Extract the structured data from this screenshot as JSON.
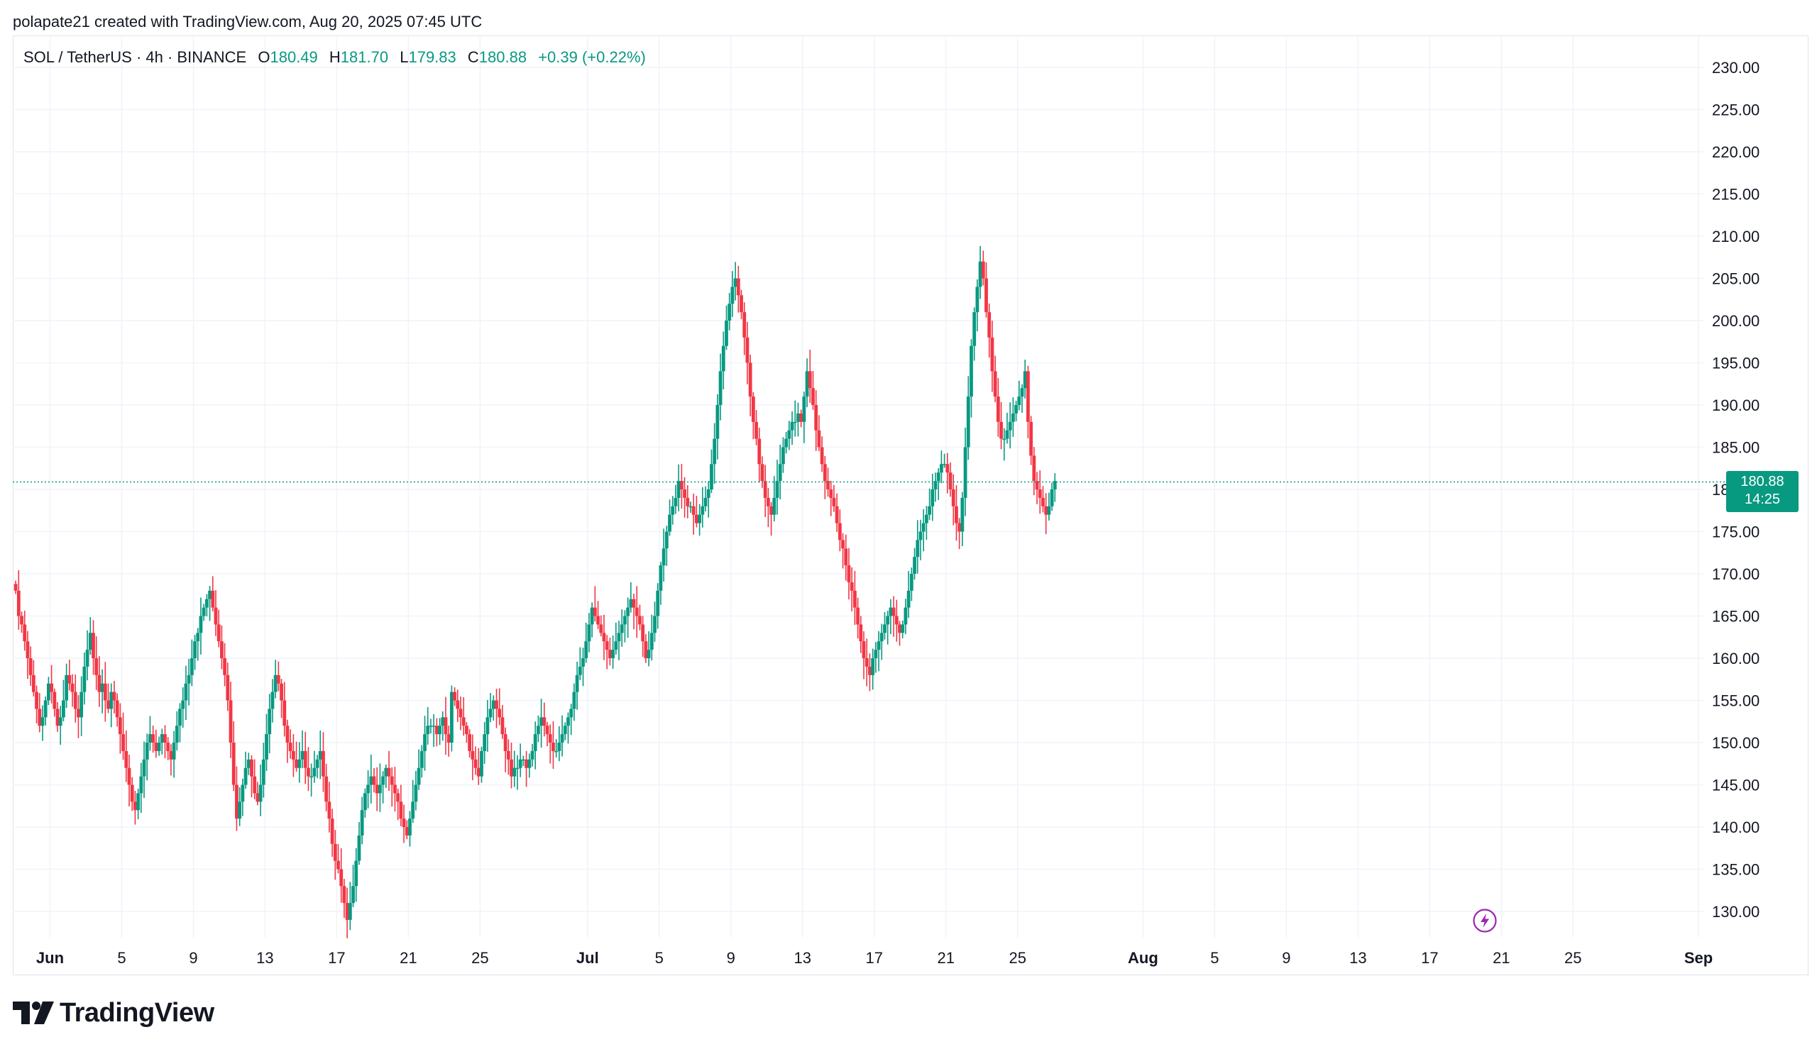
{
  "header": {
    "credit": "polapate21 created with TradingView.com, Aug 20, 2025 07:45 UTC"
  },
  "legend": {
    "symbol": "SOL / TetherUS · 4h · BINANCE",
    "open_label": "O",
    "open": "180.49",
    "high_label": "H",
    "high": "181.70",
    "low_label": "L",
    "low": "179.83",
    "close_label": "C",
    "close": "180.88",
    "change": "+0.39 (+0.22%)"
  },
  "price_tag": {
    "price": "180.88",
    "countdown": "14:25"
  },
  "logo": {
    "text": "TradingView"
  },
  "icons": {
    "flash": "lightning-icon",
    "logo": "tradingview-logo-icon"
  },
  "colors": {
    "up": "#089981",
    "down": "#f23645",
    "grid": "#f0f3fa",
    "axis_text": "#131722",
    "flash": "#9c27b0"
  },
  "chart_data": {
    "type": "candlestick",
    "interval": "4h",
    "ylim": [
      126,
      233
    ],
    "y_ticks": [
      "130.00",
      "135.00",
      "140.00",
      "145.00",
      "150.00",
      "155.00",
      "160.00",
      "165.00",
      "170.00",
      "175.00",
      "180.00",
      "185.00",
      "190.00",
      "195.00",
      "200.00",
      "205.00",
      "210.00",
      "215.00",
      "220.00",
      "225.00",
      "230.00"
    ],
    "x_range": [
      "2025-05-30",
      "2025-09-01"
    ],
    "x_ticks": [
      {
        "date": "2025-06-01",
        "label": "Jun",
        "bold": true
      },
      {
        "date": "2025-06-05",
        "label": "5"
      },
      {
        "date": "2025-06-09",
        "label": "9"
      },
      {
        "date": "2025-06-13",
        "label": "13"
      },
      {
        "date": "2025-06-17",
        "label": "17"
      },
      {
        "date": "2025-06-21",
        "label": "21"
      },
      {
        "date": "2025-06-25",
        "label": "25"
      },
      {
        "date": "2025-07-01",
        "label": "Jul",
        "bold": true
      },
      {
        "date": "2025-07-05",
        "label": "5"
      },
      {
        "date": "2025-07-09",
        "label": "9"
      },
      {
        "date": "2025-07-13",
        "label": "13"
      },
      {
        "date": "2025-07-17",
        "label": "17"
      },
      {
        "date": "2025-07-21",
        "label": "21"
      },
      {
        "date": "2025-07-25",
        "label": "25"
      },
      {
        "date": "2025-08-01",
        "label": "Aug",
        "bold": true
      },
      {
        "date": "2025-08-05",
        "label": "5"
      },
      {
        "date": "2025-08-09",
        "label": "9"
      },
      {
        "date": "2025-08-13",
        "label": "13"
      },
      {
        "date": "2025-08-17",
        "label": "17"
      },
      {
        "date": "2025-08-21",
        "label": "21"
      },
      {
        "date": "2025-08-25",
        "label": "25"
      },
      {
        "date": "2025-09-01",
        "label": "Sep",
        "bold": true
      }
    ],
    "start": "2025-05-30T00:00Z",
    "step_hours": 4,
    "closes": [
      168,
      165,
      164,
      162,
      160,
      158,
      156,
      154,
      152,
      153,
      155,
      157,
      156,
      154,
      152,
      153,
      155,
      158,
      157,
      156,
      154,
      153,
      156,
      159,
      161,
      163,
      160,
      158,
      156,
      157,
      155,
      154,
      156,
      155,
      153,
      151,
      149,
      147,
      145,
      143,
      142,
      144,
      146,
      148,
      150,
      151,
      150,
      149,
      150,
      151,
      150,
      149,
      148,
      150,
      152,
      154,
      155,
      157,
      158,
      160,
      162,
      163,
      165,
      166,
      167,
      168,
      166,
      164,
      162,
      160,
      158,
      155,
      150,
      145,
      141,
      143,
      145,
      147,
      148,
      146,
      144,
      143,
      145,
      148,
      151,
      154,
      156,
      158,
      157,
      155,
      152,
      150,
      149,
      148,
      147,
      148,
      149,
      147,
      146,
      146,
      147,
      148,
      149,
      146,
      143,
      141,
      138,
      136,
      135,
      133,
      131,
      129,
      131,
      133,
      136,
      139,
      142,
      144,
      145,
      146,
      145,
      144,
      145,
      146,
      147,
      146,
      145,
      144,
      143,
      141,
      140,
      139,
      141,
      143,
      145,
      147,
      149,
      151,
      152,
      152,
      152,
      151,
      152,
      153,
      151,
      150,
      156,
      155,
      154,
      153,
      152,
      151,
      149,
      148,
      147,
      146,
      149,
      151,
      153,
      154,
      155,
      154,
      153,
      151,
      149,
      148,
      146,
      147,
      147,
      148,
      148,
      147,
      148,
      149,
      151,
      152,
      153,
      152,
      151,
      150,
      149,
      149,
      150,
      151,
      152,
      153,
      154,
      156,
      158,
      159,
      160,
      162,
      164,
      166,
      165,
      164,
      163,
      162,
      161,
      160,
      161,
      162,
      163,
      164,
      165,
      166,
      167,
      166,
      165,
      164,
      162,
      160,
      161,
      163,
      165,
      168,
      171,
      173,
      175,
      177,
      178,
      179,
      181,
      180,
      179,
      178,
      178,
      177,
      176,
      177,
      178,
      179,
      180,
      183,
      186,
      190,
      194,
      197,
      200,
      202,
      204,
      205,
      203,
      201,
      198,
      195,
      191,
      188,
      186,
      183,
      181,
      179,
      178,
      177,
      179,
      181,
      183,
      185,
      186,
      187,
      188,
      188,
      189,
      188,
      191,
      194,
      192,
      190,
      187,
      185,
      183,
      181,
      180,
      179,
      178,
      176,
      174,
      173,
      171,
      169,
      168,
      166,
      164,
      162,
      160,
      159,
      158,
      160,
      161,
      162,
      163,
      164,
      165,
      166,
      165,
      164,
      163,
      164,
      166,
      168,
      170,
      172,
      174,
      175,
      176,
      177,
      178,
      180,
      181,
      182,
      183,
      183,
      182,
      180,
      178,
      176,
      175,
      179,
      185,
      191,
      197,
      201,
      204,
      207,
      205,
      201,
      198,
      194,
      191,
      188,
      186,
      186,
      187,
      188,
      189,
      190,
      191,
      192,
      194,
      188,
      184,
      181,
      180,
      179,
      178,
      177,
      178,
      180,
      181
    ]
  }
}
